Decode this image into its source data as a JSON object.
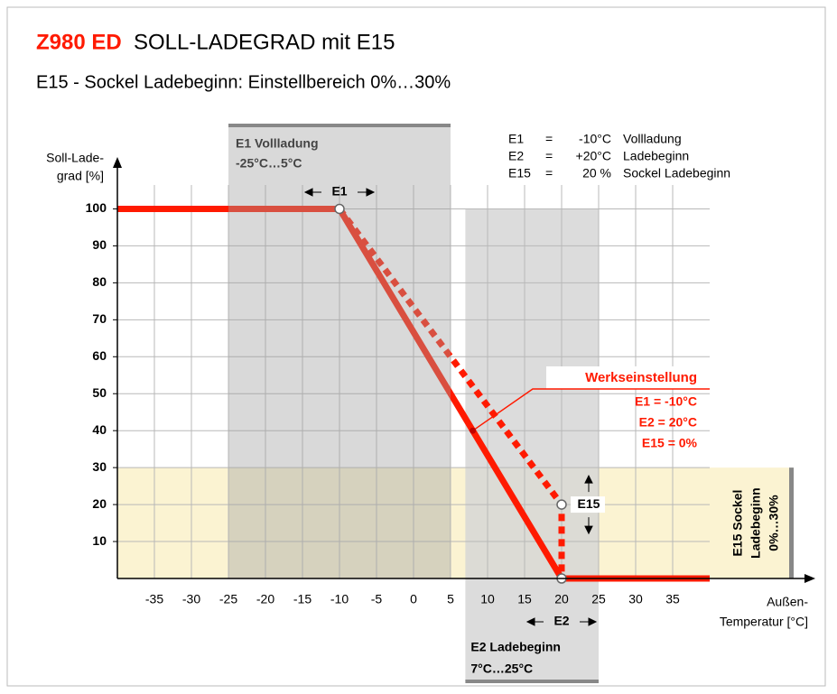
{
  "chart_data": {
    "type": "line",
    "title_code": "Z980 ED",
    "title": "SOLL-LADEGRAD mit E15",
    "subtitle": "E15 - Sockel Ladebeginn:  Einstellbereich 0%…30%",
    "y_label": [
      "Soll-Lade-",
      "grad [%]"
    ],
    "x_label": [
      "Außen-",
      "Temperatur [°C]"
    ],
    "xlim": [
      -40,
      40
    ],
    "ylim": [
      0,
      105
    ],
    "xticks": [
      -35,
      -30,
      -25,
      -20,
      -15,
      -10,
      -5,
      0,
      5,
      10,
      15,
      20,
      25,
      30,
      35
    ],
    "yticks": [
      10,
      20,
      30,
      40,
      50,
      60,
      70,
      80,
      90,
      100
    ],
    "grid": true,
    "series": [
      {
        "name": "Werkseinstellung",
        "color": "#ff1a00",
        "style": "solid",
        "x": [
          -40,
          -10,
          20,
          40
        ],
        "values": [
          100,
          100,
          0,
          0
        ]
      },
      {
        "name": "E15",
        "color": "#ff1a00",
        "style": "dotted",
        "x": [
          -10,
          20,
          20
        ],
        "values": [
          100,
          20,
          0
        ]
      }
    ],
    "legend": [
      [
        "E1",
        "=",
        "-10°C",
        "Vollladung"
      ],
      [
        "E2",
        "=",
        "+20°C",
        "Ladebeginn"
      ],
      [
        "E15",
        "=",
        "20 %",
        "Sockel Ladebeginn"
      ]
    ],
    "annotation": {
      "label": "Werkseinstellung",
      "lines": [
        "E1 = -10°C",
        "E2 = 20°C",
        "E15 = 0%"
      ],
      "x": 8,
      "y": 40
    },
    "regions": [
      {
        "lines": [
          "E1 Vollladung",
          "-25°C…5°C"
        ],
        "x": [
          -25,
          5
        ],
        "color": "#a0a0a0"
      },
      {
        "lines": [
          "E2 Ladebeginn",
          "7°C…25°C"
        ],
        "x": [
          7,
          25
        ],
        "color": "#d6d6d6"
      },
      {
        "lines": [
          "E15 Sockel",
          "Ladebeginn",
          "0%…30%"
        ],
        "y": [
          0,
          30
        ],
        "color": "#fbf3d2"
      }
    ],
    "markers": [
      "E1",
      "E2",
      "E15"
    ]
  }
}
